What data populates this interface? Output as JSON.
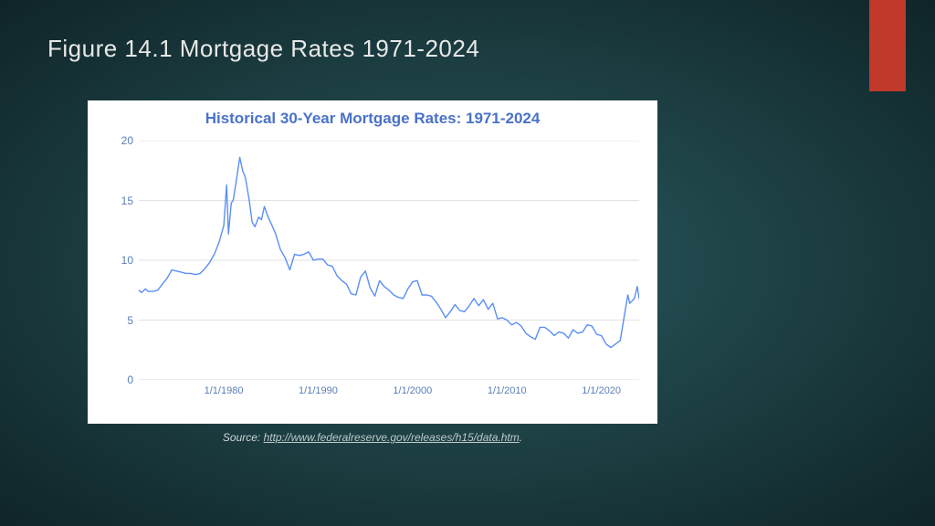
{
  "slide": {
    "title": "Figure 14.1 Mortgage Rates 1971-2024",
    "accent_color": "#c0392b",
    "bg_gradient_inner": "#2a5a5e",
    "bg_gradient_outer": "#0f2428"
  },
  "chart": {
    "type": "line",
    "title": "Historical 30-Year Mortgage Rates: 1971-2024",
    "title_color": "#4a72c8",
    "title_fontsize": 17,
    "background_color": "#ffffff",
    "line_color": "#5b8ff5",
    "line_width": 1.4,
    "grid_color": "#d9d9d9",
    "axis_label_color": "#5a7db8",
    "xlim": [
      1971,
      2024
    ],
    "ylim": [
      0,
      20
    ],
    "ytick_step": 5,
    "yticks": [
      0,
      5,
      10,
      15,
      20
    ],
    "xticks": [
      {
        "pos": 1980,
        "label": "1/1/1980"
      },
      {
        "pos": 1990,
        "label": "1/1/1990"
      },
      {
        "pos": 2000,
        "label": "1/1/2000"
      },
      {
        "pos": 2010,
        "label": "1/1/2010"
      },
      {
        "pos": 2020,
        "label": "1/1/2020"
      }
    ],
    "series": [
      {
        "x": 1971.0,
        "y": 7.5
      },
      {
        "x": 1971.3,
        "y": 7.3
      },
      {
        "x": 1971.7,
        "y": 7.6
      },
      {
        "x": 1972.0,
        "y": 7.4
      },
      {
        "x": 1972.5,
        "y": 7.4
      },
      {
        "x": 1973.0,
        "y": 7.5
      },
      {
        "x": 1973.5,
        "y": 8.0
      },
      {
        "x": 1974.0,
        "y": 8.5
      },
      {
        "x": 1974.5,
        "y": 9.2
      },
      {
        "x": 1975.0,
        "y": 9.1
      },
      {
        "x": 1975.5,
        "y": 9.0
      },
      {
        "x": 1976.0,
        "y": 8.9
      },
      {
        "x": 1976.5,
        "y": 8.9
      },
      {
        "x": 1977.0,
        "y": 8.8
      },
      {
        "x": 1977.5,
        "y": 8.9
      },
      {
        "x": 1978.0,
        "y": 9.3
      },
      {
        "x": 1978.5,
        "y": 9.8
      },
      {
        "x": 1979.0,
        "y": 10.5
      },
      {
        "x": 1979.5,
        "y": 11.5
      },
      {
        "x": 1980.0,
        "y": 12.9
      },
      {
        "x": 1980.3,
        "y": 16.3
      },
      {
        "x": 1980.5,
        "y": 12.2
      },
      {
        "x": 1980.8,
        "y": 14.8
      },
      {
        "x": 1981.0,
        "y": 15.0
      },
      {
        "x": 1981.3,
        "y": 16.5
      },
      {
        "x": 1981.7,
        "y": 18.6
      },
      {
        "x": 1982.0,
        "y": 17.5
      },
      {
        "x": 1982.3,
        "y": 16.9
      },
      {
        "x": 1982.7,
        "y": 15.0
      },
      {
        "x": 1983.0,
        "y": 13.2
      },
      {
        "x": 1983.3,
        "y": 12.8
      },
      {
        "x": 1983.7,
        "y": 13.6
      },
      {
        "x": 1984.0,
        "y": 13.4
      },
      {
        "x": 1984.3,
        "y": 14.5
      },
      {
        "x": 1984.7,
        "y": 13.6
      },
      {
        "x": 1985.0,
        "y": 13.1
      },
      {
        "x": 1985.5,
        "y": 12.2
      },
      {
        "x": 1986.0,
        "y": 10.9
      },
      {
        "x": 1986.5,
        "y": 10.2
      },
      {
        "x": 1987.0,
        "y": 9.2
      },
      {
        "x": 1987.5,
        "y": 10.5
      },
      {
        "x": 1988.0,
        "y": 10.4
      },
      {
        "x": 1988.5,
        "y": 10.5
      },
      {
        "x": 1989.0,
        "y": 10.7
      },
      {
        "x": 1989.5,
        "y": 10.0
      },
      {
        "x": 1990.0,
        "y": 10.1
      },
      {
        "x": 1990.5,
        "y": 10.1
      },
      {
        "x": 1991.0,
        "y": 9.6
      },
      {
        "x": 1991.5,
        "y": 9.5
      },
      {
        "x": 1992.0,
        "y": 8.7
      },
      {
        "x": 1992.5,
        "y": 8.3
      },
      {
        "x": 1993.0,
        "y": 8.0
      },
      {
        "x": 1993.5,
        "y": 7.2
      },
      {
        "x": 1994.0,
        "y": 7.1
      },
      {
        "x": 1994.5,
        "y": 8.6
      },
      {
        "x": 1995.0,
        "y": 9.1
      },
      {
        "x": 1995.5,
        "y": 7.7
      },
      {
        "x": 1996.0,
        "y": 7.0
      },
      {
        "x": 1996.5,
        "y": 8.3
      },
      {
        "x": 1997.0,
        "y": 7.8
      },
      {
        "x": 1997.5,
        "y": 7.5
      },
      {
        "x": 1998.0,
        "y": 7.1
      },
      {
        "x": 1998.5,
        "y": 6.9
      },
      {
        "x": 1999.0,
        "y": 6.8
      },
      {
        "x": 1999.5,
        "y": 7.6
      },
      {
        "x": 2000.0,
        "y": 8.2
      },
      {
        "x": 2000.5,
        "y": 8.3
      },
      {
        "x": 2001.0,
        "y": 7.1
      },
      {
        "x": 2001.5,
        "y": 7.1
      },
      {
        "x": 2002.0,
        "y": 7.0
      },
      {
        "x": 2002.5,
        "y": 6.5
      },
      {
        "x": 2003.0,
        "y": 5.9
      },
      {
        "x": 2003.5,
        "y": 5.2
      },
      {
        "x": 2004.0,
        "y": 5.7
      },
      {
        "x": 2004.5,
        "y": 6.3
      },
      {
        "x": 2005.0,
        "y": 5.8
      },
      {
        "x": 2005.5,
        "y": 5.7
      },
      {
        "x": 2006.0,
        "y": 6.2
      },
      {
        "x": 2006.5,
        "y": 6.8
      },
      {
        "x": 2007.0,
        "y": 6.2
      },
      {
        "x": 2007.5,
        "y": 6.7
      },
      {
        "x": 2008.0,
        "y": 5.9
      },
      {
        "x": 2008.5,
        "y": 6.4
      },
      {
        "x": 2009.0,
        "y": 5.1
      },
      {
        "x": 2009.5,
        "y": 5.2
      },
      {
        "x": 2010.0,
        "y": 5.0
      },
      {
        "x": 2010.5,
        "y": 4.6
      },
      {
        "x": 2011.0,
        "y": 4.8
      },
      {
        "x": 2011.5,
        "y": 4.5
      },
      {
        "x": 2012.0,
        "y": 3.9
      },
      {
        "x": 2012.5,
        "y": 3.6
      },
      {
        "x": 2013.0,
        "y": 3.4
      },
      {
        "x": 2013.5,
        "y": 4.4
      },
      {
        "x": 2014.0,
        "y": 4.4
      },
      {
        "x": 2014.5,
        "y": 4.1
      },
      {
        "x": 2015.0,
        "y": 3.7
      },
      {
        "x": 2015.5,
        "y": 4.0
      },
      {
        "x": 2016.0,
        "y": 3.9
      },
      {
        "x": 2016.5,
        "y": 3.5
      },
      {
        "x": 2017.0,
        "y": 4.2
      },
      {
        "x": 2017.5,
        "y": 3.9
      },
      {
        "x": 2018.0,
        "y": 4.0
      },
      {
        "x": 2018.5,
        "y": 4.6
      },
      {
        "x": 2019.0,
        "y": 4.5
      },
      {
        "x": 2019.5,
        "y": 3.8
      },
      {
        "x": 2020.0,
        "y": 3.7
      },
      {
        "x": 2020.5,
        "y": 3.0
      },
      {
        "x": 2021.0,
        "y": 2.7
      },
      {
        "x": 2021.5,
        "y": 3.0
      },
      {
        "x": 2022.0,
        "y": 3.3
      },
      {
        "x": 2022.5,
        "y": 5.7
      },
      {
        "x": 2022.8,
        "y": 7.1
      },
      {
        "x": 2023.0,
        "y": 6.4
      },
      {
        "x": 2023.5,
        "y": 6.8
      },
      {
        "x": 2023.8,
        "y": 7.8
      },
      {
        "x": 2024.0,
        "y": 6.8
      }
    ]
  },
  "source": {
    "prefix": "Source: ",
    "link_text": "http://www.federalreserve.gov/releases/h15/data.htm",
    "suffix": "."
  }
}
